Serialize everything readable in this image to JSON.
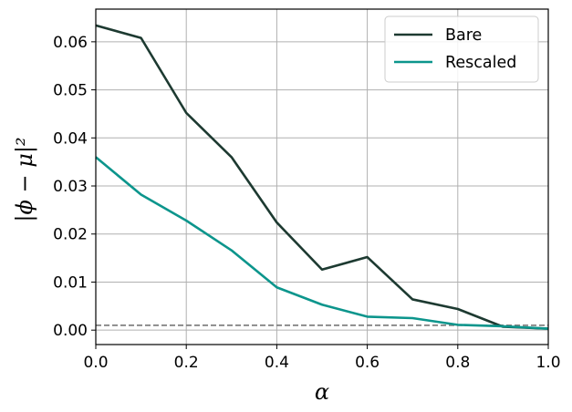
{
  "chart_data": {
    "type": "line",
    "title": "",
    "xlabel": "α",
    "ylabel": "|ϕ − μ|²",
    "xlim": [
      0.0,
      1.0
    ],
    "ylim": [
      -0.003,
      0.0668
    ],
    "x_ticks": [
      0.0,
      0.2,
      0.4,
      0.6,
      0.8,
      1.0
    ],
    "x_tick_labels": [
      "0.0",
      "0.2",
      "0.4",
      "0.6",
      "0.8",
      "1.0"
    ],
    "y_ticks": [
      0.0,
      0.01,
      0.02,
      0.03,
      0.04,
      0.05,
      0.06
    ],
    "y_tick_labels": [
      "0.00",
      "0.01",
      "0.02",
      "0.03",
      "0.04",
      "0.05",
      "0.06"
    ],
    "grid": true,
    "legend_position": "top-right",
    "x": [
      0.0,
      0.1,
      0.2,
      0.3,
      0.4,
      0.5,
      0.6,
      0.7,
      0.8,
      0.9,
      1.0
    ],
    "series": [
      {
        "name": "Bare",
        "color": "#1d3a31",
        "values": [
          0.0634,
          0.0608,
          0.0452,
          0.036,
          0.0224,
          0.0126,
          0.0152,
          0.0064,
          0.0044,
          0.0007,
          0.0003
        ]
      },
      {
        "name": "Rescaled",
        "color": "#0c958c",
        "values": [
          0.036,
          0.0282,
          0.0228,
          0.0166,
          0.0089,
          0.0053,
          0.0028,
          0.0025,
          0.0011,
          0.0008,
          0.0003
        ]
      }
    ],
    "reference_line": {
      "y": 0.001,
      "color": "#808080",
      "style": "dashed"
    }
  }
}
